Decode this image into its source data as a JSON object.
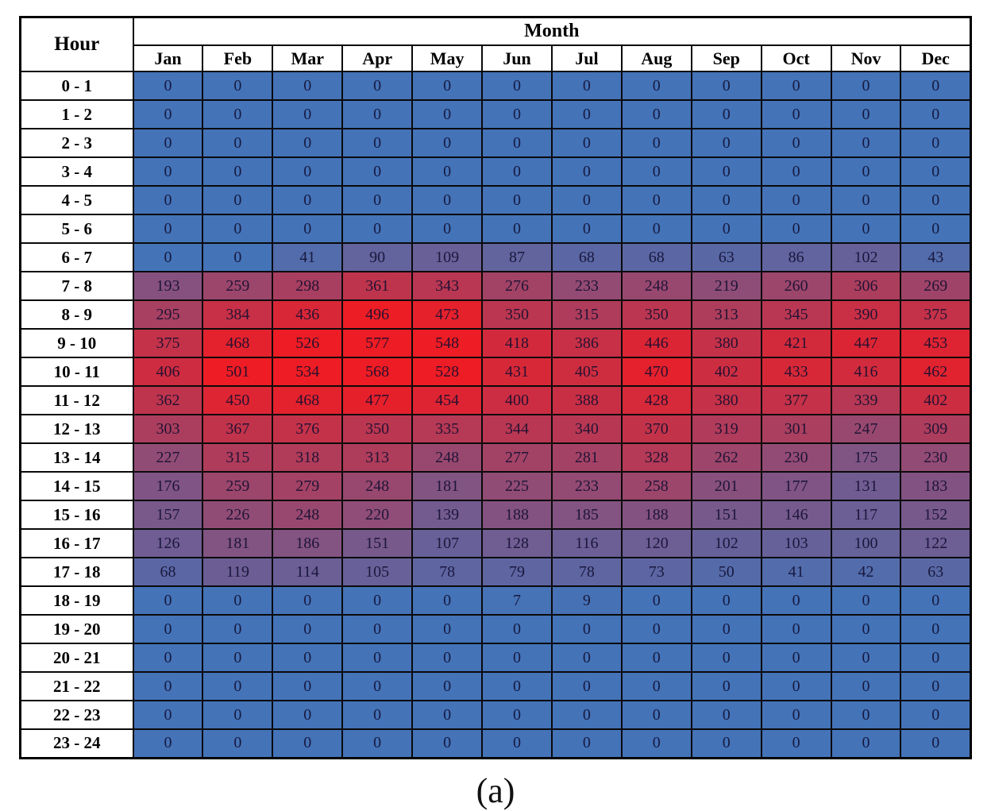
{
  "chart_data": {
    "type": "heatmap",
    "title": "",
    "row_axis_label": "Hour",
    "col_axis_label": "Month",
    "columns": [
      "Jan",
      "Feb",
      "Mar",
      "Apr",
      "May",
      "Jun",
      "Jul",
      "Aug",
      "Sep",
      "Oct",
      "Nov",
      "Dec"
    ],
    "rows": [
      "0 - 1",
      "1 - 2",
      "2 - 3",
      "3 - 4",
      "4 - 5",
      "5 - 6",
      "6 - 7",
      "7 - 8",
      "8 - 9",
      "9 - 10",
      "10 - 11",
      "11 - 12",
      "12 - 13",
      "13 - 14",
      "14 - 15",
      "15 - 16",
      "16 - 17",
      "17 - 18",
      "18 - 19",
      "19 - 20",
      "20 - 21",
      "21 - 22",
      "22 - 23",
      "23 - 24"
    ],
    "values": [
      [
        0,
        0,
        0,
        0,
        0,
        0,
        0,
        0,
        0,
        0,
        0,
        0
      ],
      [
        0,
        0,
        0,
        0,
        0,
        0,
        0,
        0,
        0,
        0,
        0,
        0
      ],
      [
        0,
        0,
        0,
        0,
        0,
        0,
        0,
        0,
        0,
        0,
        0,
        0
      ],
      [
        0,
        0,
        0,
        0,
        0,
        0,
        0,
        0,
        0,
        0,
        0,
        0
      ],
      [
        0,
        0,
        0,
        0,
        0,
        0,
        0,
        0,
        0,
        0,
        0,
        0
      ],
      [
        0,
        0,
        0,
        0,
        0,
        0,
        0,
        0,
        0,
        0,
        0,
        0
      ],
      [
        0,
        0,
        41,
        90,
        109,
        87,
        68,
        68,
        63,
        86,
        102,
        43
      ],
      [
        193,
        259,
        298,
        361,
        343,
        276,
        233,
        248,
        219,
        260,
        306,
        269
      ],
      [
        295,
        384,
        436,
        496,
        473,
        350,
        315,
        350,
        313,
        345,
        390,
        375
      ],
      [
        375,
        468,
        526,
        577,
        548,
        418,
        386,
        446,
        380,
        421,
        447,
        453
      ],
      [
        406,
        501,
        534,
        568,
        528,
        431,
        405,
        470,
        402,
        433,
        416,
        462
      ],
      [
        362,
        450,
        468,
        477,
        454,
        400,
        388,
        428,
        380,
        377,
        339,
        402
      ],
      [
        303,
        367,
        376,
        350,
        335,
        344,
        340,
        370,
        319,
        301,
        247,
        309
      ],
      [
        227,
        315,
        318,
        313,
        248,
        277,
        281,
        328,
        262,
        230,
        175,
        230
      ],
      [
        176,
        259,
        279,
        248,
        181,
        225,
        233,
        258,
        201,
        177,
        131,
        183
      ],
      [
        157,
        226,
        248,
        220,
        139,
        188,
        185,
        188,
        151,
        146,
        117,
        152
      ],
      [
        126,
        181,
        186,
        151,
        107,
        128,
        116,
        120,
        102,
        103,
        100,
        122
      ],
      [
        68,
        119,
        114,
        105,
        78,
        79,
        78,
        73,
        50,
        41,
        42,
        63
      ],
      [
        0,
        0,
        0,
        0,
        0,
        7,
        9,
        0,
        0,
        0,
        0,
        0
      ],
      [
        0,
        0,
        0,
        0,
        0,
        0,
        0,
        0,
        0,
        0,
        0,
        0
      ],
      [
        0,
        0,
        0,
        0,
        0,
        0,
        0,
        0,
        0,
        0,
        0,
        0
      ],
      [
        0,
        0,
        0,
        0,
        0,
        0,
        0,
        0,
        0,
        0,
        0,
        0
      ],
      [
        0,
        0,
        0,
        0,
        0,
        0,
        0,
        0,
        0,
        0,
        0,
        0
      ],
      [
        0,
        0,
        0,
        0,
        0,
        0,
        0,
        0,
        0,
        0,
        0,
        0
      ]
    ],
    "colormap": {
      "low_color": "#4473b8",
      "high_color": "#ee1c24",
      "domain": [
        0,
        500
      ]
    },
    "caption": "(a)",
    "legend": "none",
    "grid": "table-borders"
  }
}
